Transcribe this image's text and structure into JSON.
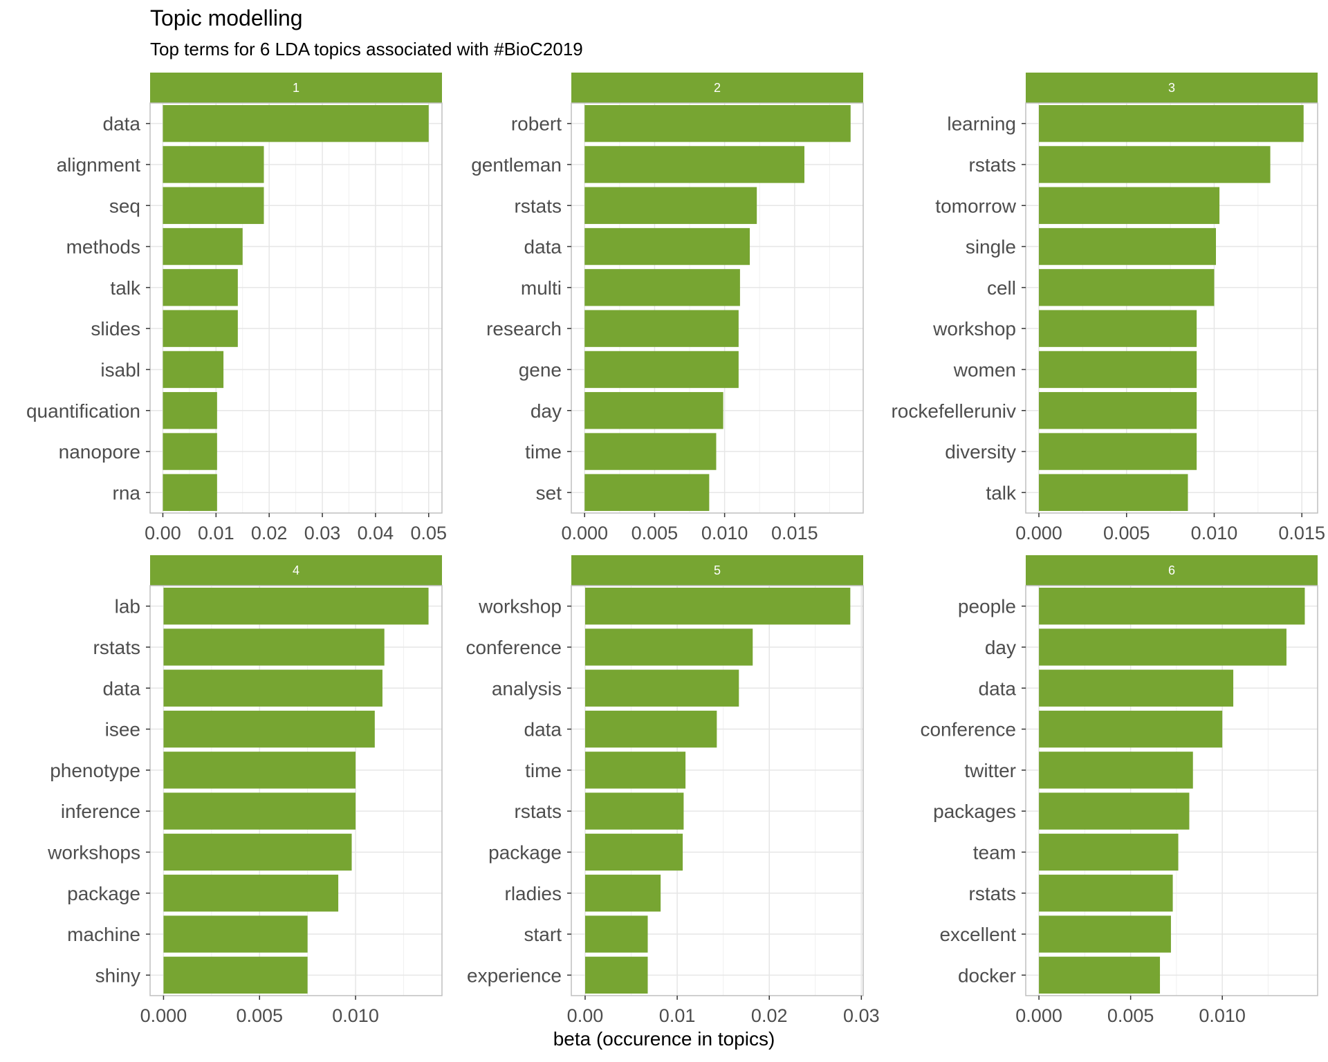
{
  "chart_data": {
    "type": "bar",
    "title": "Topic modelling",
    "subtitle": "Top terms for 6 LDA topics associated with #BioC2019",
    "xlabel": "beta (occurence in topics)",
    "ylabel": "",
    "orientation": "horizontal",
    "grid": true,
    "colors": {
      "bar": "#77a532",
      "strip": "#77a532",
      "grid": "#e6e6e6",
      "border": "#bfbfbf"
    },
    "panels": [
      {
        "facet": "1",
        "categories": [
          "data",
          "alignment",
          "seq",
          "methods",
          "talk",
          "slides",
          "isabl",
          "quantification",
          "nanopore",
          "rna"
        ],
        "values": [
          0.05,
          0.019,
          0.019,
          0.015,
          0.0141,
          0.0141,
          0.0114,
          0.0102,
          0.0102,
          0.0102
        ],
        "xlim": [
          -0.0024,
          0.0525
        ],
        "xticks": [
          0,
          0.01,
          0.02,
          0.03,
          0.04,
          0.05
        ],
        "xtick_labels": [
          "0.00",
          "0.01",
          "0.02",
          "0.03",
          "0.04",
          "0.05"
        ]
      },
      {
        "facet": "2",
        "categories": [
          "robert",
          "gentleman",
          "rstats",
          "data",
          "multi",
          "research",
          "gene",
          "day",
          "time",
          "set"
        ],
        "values": [
          0.019,
          0.0157,
          0.0123,
          0.0118,
          0.0111,
          0.011,
          0.011,
          0.0099,
          0.0094,
          0.0089
        ],
        "xlim": [
          -0.00095,
          0.0199
        ],
        "xticks": [
          0,
          0.005,
          0.01,
          0.015
        ],
        "xtick_labels": [
          "0.000",
          "0.005",
          "0.010",
          "0.015"
        ]
      },
      {
        "facet": "3",
        "categories": [
          "learning",
          "rstats",
          "tomorrow",
          "single",
          "cell",
          "workshop",
          "women",
          "rockefelleruniv",
          "diversity",
          "talk"
        ],
        "values": [
          0.0151,
          0.0132,
          0.0103,
          0.0101,
          0.01,
          0.009,
          0.009,
          0.009,
          0.009,
          0.0085
        ],
        "xlim": [
          -0.00075,
          0.0159
        ],
        "xticks": [
          0,
          0.005,
          0.01,
          0.015
        ],
        "xtick_labels": [
          "0.000",
          "0.005",
          "0.010",
          "0.015"
        ]
      },
      {
        "facet": "4",
        "categories": [
          "lab",
          "rstats",
          "data",
          "isee",
          "phenotype",
          "inference",
          "workshops",
          "package",
          "machine",
          "shiny"
        ],
        "values": [
          0.0138,
          0.0115,
          0.0114,
          0.011,
          0.01,
          0.01,
          0.0098,
          0.0091,
          0.0075,
          0.0075
        ],
        "xlim": [
          -0.0007,
          0.0145
        ],
        "xticks": [
          0,
          0.005,
          0.01
        ],
        "xtick_labels": [
          "0.000",
          "0.005",
          "0.010"
        ]
      },
      {
        "facet": "5",
        "categories": [
          "workshop",
          "conference",
          "analysis",
          "data",
          "time",
          "rstats",
          "package",
          "rladies",
          "start",
          "experience"
        ],
        "values": [
          0.0288,
          0.0182,
          0.0167,
          0.0143,
          0.0109,
          0.0107,
          0.0106,
          0.0082,
          0.0068,
          0.0068
        ],
        "xlim": [
          -0.0015,
          0.0302
        ],
        "xticks": [
          0,
          0.01,
          0.02,
          0.03
        ],
        "xtick_labels": [
          "0.00",
          "0.01",
          "0.02",
          "0.03"
        ]
      },
      {
        "facet": "6",
        "categories": [
          "people",
          "day",
          "data",
          "conference",
          "twitter",
          "packages",
          "team",
          "rstats",
          "excellent",
          "docker"
        ],
        "values": [
          0.0145,
          0.0135,
          0.0106,
          0.01,
          0.0084,
          0.0082,
          0.0076,
          0.0073,
          0.0072,
          0.0066
        ],
        "xlim": [
          -0.00072,
          0.0152
        ],
        "xticks": [
          0,
          0.005,
          0.01
        ],
        "xtick_labels": [
          "0.000",
          "0.005",
          "0.010"
        ]
      }
    ]
  }
}
